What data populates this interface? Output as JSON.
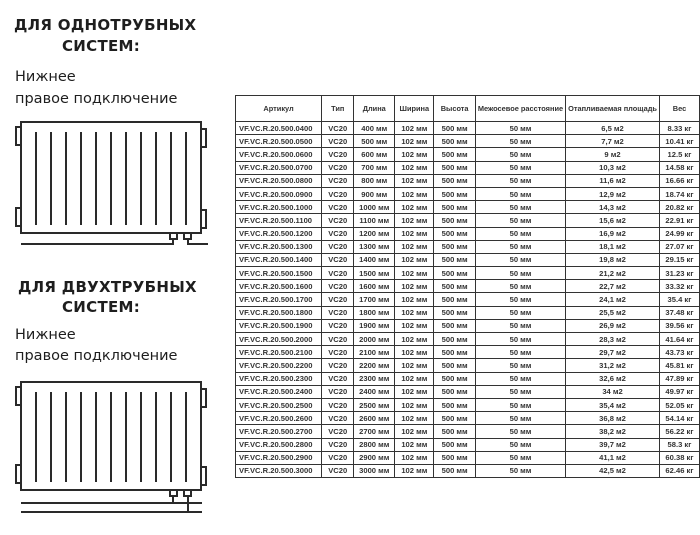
{
  "sections": [
    {
      "title_line1": "ДЛЯ ОДНОТРУБНЫХ",
      "title_line2": "СИСТЕМ:",
      "sub_line1": "Нижнее",
      "sub_line2": "правое подключение",
      "pipes": 1
    },
    {
      "title_line1": "ДЛЯ ДВУХТРУБНЫХ",
      "title_line2": "СИСТЕМ:",
      "sub_line1": "Нижнее",
      "sub_line2": "правое подключение",
      "pipes": 2
    }
  ],
  "table": {
    "headers": [
      "Артикул",
      "Тип",
      "Длина",
      "Ширина",
      "Высота",
      "Межосевое расстояние",
      "Отапливаемая площадь",
      "Вес"
    ],
    "rows": [
      [
        "VF.VC.R.20.500.0400",
        "VC20",
        "400 мм",
        "102 мм",
        "500 мм",
        "50 мм",
        "6,5 м2",
        "8.33 кг"
      ],
      [
        "VF.VC.R.20.500.0500",
        "VC20",
        "500 мм",
        "102 мм",
        "500 мм",
        "50 мм",
        "7,7 м2",
        "10.41 кг"
      ],
      [
        "VF.VC.R.20.500.0600",
        "VC20",
        "600 мм",
        "102 мм",
        "500 мм",
        "50 мм",
        "9 м2",
        "12.5 кг"
      ],
      [
        "VF.VC.R.20.500.0700",
        "VC20",
        "700 мм",
        "102 мм",
        "500 мм",
        "50 мм",
        "10,3 м2",
        "14.58 кг"
      ],
      [
        "VF.VC.R.20.500.0800",
        "VC20",
        "800 мм",
        "102 мм",
        "500 мм",
        "50 мм",
        "11,6 м2",
        "16.66 кг"
      ],
      [
        "VF.VC.R.20.500.0900",
        "VC20",
        "900 мм",
        "102 мм",
        "500 мм",
        "50 мм",
        "12,9 м2",
        "18.74 кг"
      ],
      [
        "VF.VC.R.20.500.1000",
        "VC20",
        "1000 мм",
        "102 мм",
        "500 мм",
        "50 мм",
        "14,3 м2",
        "20.82 кг"
      ],
      [
        "VF.VC.R.20.500.1100",
        "VC20",
        "1100 мм",
        "102 мм",
        "500 мм",
        "50 мм",
        "15,6 м2",
        "22.91 кг"
      ],
      [
        "VF.VC.R.20.500.1200",
        "VC20",
        "1200 мм",
        "102 мм",
        "500 мм",
        "50 мм",
        "16,9 м2",
        "24.99 кг"
      ],
      [
        "VF.VC.R.20.500.1300",
        "VC20",
        "1300 мм",
        "102 мм",
        "500 мм",
        "50 мм",
        "18,1 м2",
        "27.07 кг"
      ],
      [
        "VF.VC.R.20.500.1400",
        "VC20",
        "1400 мм",
        "102 мм",
        "500 мм",
        "50 мм",
        "19,8 м2",
        "29.15 кг"
      ],
      [
        "VF.VC.R.20.500.1500",
        "VC20",
        "1500 мм",
        "102 мм",
        "500 мм",
        "50 мм",
        "21,2 м2",
        "31.23 кг"
      ],
      [
        "VF.VC.R.20.500.1600",
        "VC20",
        "1600 мм",
        "102 мм",
        "500 мм",
        "50 мм",
        "22,7 м2",
        "33.32 кг"
      ],
      [
        "VF.VC.R.20.500.1700",
        "VC20",
        "1700 мм",
        "102 мм",
        "500 мм",
        "50 мм",
        "24,1 м2",
        "35.4 кг"
      ],
      [
        "VF.VC.R.20.500.1800",
        "VC20",
        "1800 мм",
        "102 мм",
        "500 мм",
        "50 мм",
        "25,5 м2",
        "37.48 кг"
      ],
      [
        "VF.VC.R.20.500.1900",
        "VC20",
        "1900 мм",
        "102 мм",
        "500 мм",
        "50 мм",
        "26,9 м2",
        "39.56 кг"
      ],
      [
        "VF.VC.R.20.500.2000",
        "VC20",
        "2000 мм",
        "102 мм",
        "500 мм",
        "50 мм",
        "28,3 м2",
        "41.64 кг"
      ],
      [
        "VF.VC.R.20.500.2100",
        "VC20",
        "2100 мм",
        "102 мм",
        "500 мм",
        "50 мм",
        "29,7 м2",
        "43.73 кг"
      ],
      [
        "VF.VC.R.20.500.2200",
        "VC20",
        "2200 мм",
        "102 мм",
        "500 мм",
        "50 мм",
        "31,2 м2",
        "45.81 кг"
      ],
      [
        "VF.VC.R.20.500.2300",
        "VC20",
        "2300 мм",
        "102 мм",
        "500 мм",
        "50 мм",
        "32,6 м2",
        "47.89 кг"
      ],
      [
        "VF.VC.R.20.500.2400",
        "VC20",
        "2400 мм",
        "102 мм",
        "500 мм",
        "50 мм",
        "34 м2",
        "49.97 кг"
      ],
      [
        "VF.VC.R.20.500.2500",
        "VC20",
        "2500 мм",
        "102 мм",
        "500 мм",
        "50 мм",
        "35,4 м2",
        "52.05 кг"
      ],
      [
        "VF.VC.R.20.500.2600",
        "VC20",
        "2600 мм",
        "102 мм",
        "500 мм",
        "50 мм",
        "36,8 м2",
        "54.14 кг"
      ],
      [
        "VF.VC.R.20.500.2700",
        "VC20",
        "2700 мм",
        "102 мм",
        "500 мм",
        "50 мм",
        "38,2 м2",
        "56.22 кг"
      ],
      [
        "VF.VC.R.20.500.2800",
        "VC20",
        "2800 мм",
        "102 мм",
        "500 мм",
        "50 мм",
        "39,7 м2",
        "58.3 кг"
      ],
      [
        "VF.VC.R.20.500.2900",
        "VC20",
        "2900 мм",
        "102 мм",
        "500 мм",
        "50 мм",
        "41,1 м2",
        "60.38 кг"
      ],
      [
        "VF.VC.R.20.500.3000",
        "VC20",
        "3000 мм",
        "102 мм",
        "500 мм",
        "50 мм",
        "42,5 м2",
        "62.46 кг"
      ]
    ]
  }
}
